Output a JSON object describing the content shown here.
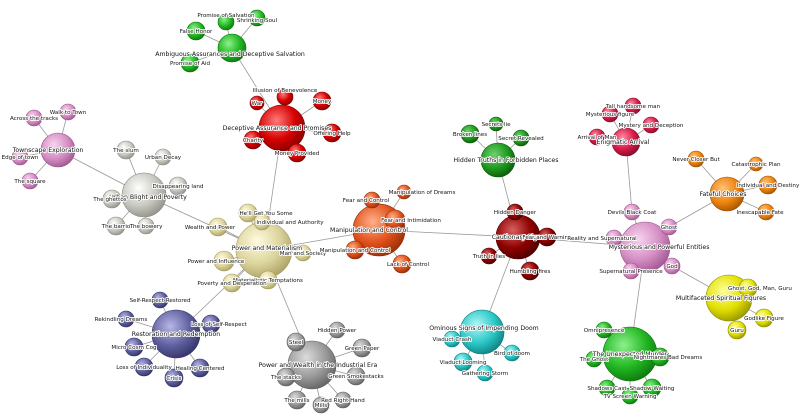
{
  "palette": {
    "green": {
      "light": "#8ef08e",
      "base": "#22b822",
      "dark": "#0a6e0a"
    },
    "red": {
      "light": "#ff7a7a",
      "base": "#d60000",
      "dark": "#7a0000"
    },
    "pink": {
      "light": "#f8d3ee",
      "base": "#d58fc4",
      "dark": "#9a4f8a"
    },
    "silver": {
      "light": "#ffffff",
      "base": "#c8c8c0",
      "dark": "#8a8a82"
    },
    "khaki": {
      "light": "#fffbe0",
      "base": "#dcd49c",
      "dark": "#a39a5c"
    },
    "orangered": {
      "light": "#ffb08a",
      "base": "#e0501a",
      "dark": "#8e2a06"
    },
    "darkred": {
      "light": "#d86060",
      "base": "#8e0000",
      "dark": "#420000"
    },
    "crimson": {
      "light": "#ff8aa0",
      "base": "#d81a48",
      "dark": "#7e0a26"
    },
    "darkgreen": {
      "light": "#6fd06f",
      "base": "#1e9a1e",
      "dark": "#085208"
    },
    "orange": {
      "light": "#ffc27a",
      "base": "#ef8410",
      "dark": "#9a4e00"
    },
    "slate": {
      "light": "#b6b6e6",
      "base": "#5f5f9f",
      "dark": "#2e2e62"
    },
    "gray": {
      "light": "#dcdcdc",
      "base": "#9a9a9a",
      "dark": "#5a5a5a"
    },
    "cyan": {
      "light": "#b2f6f6",
      "base": "#2cc8c8",
      "dark": "#0a7878"
    },
    "yellow": {
      "light": "#ffff9a",
      "base": "#e2e000",
      "dark": "#8e8c00"
    }
  },
  "nodes": [
    {
      "id": "ambiguous",
      "label": "Ambiguous Assurances and Deceptive Salvation",
      "color": "green",
      "hub": true
    },
    {
      "id": "promise",
      "label": "Promise of Salvation",
      "color": "green"
    },
    {
      "id": "shrinking",
      "label": "Shrinking Soul",
      "color": "green"
    },
    {
      "id": "falsehonor",
      "label": "False Honor",
      "color": "green"
    },
    {
      "id": "promiseaid",
      "label": "Promise of Aid",
      "color": "green"
    },
    {
      "id": "deceptive",
      "label": "Deceptive Assurance and Promises",
      "color": "red",
      "hub": true
    },
    {
      "id": "illusion",
      "label": "Illusion of Benevolence",
      "color": "red"
    },
    {
      "id": "war",
      "label": "War",
      "color": "red"
    },
    {
      "id": "money",
      "label": "Money",
      "color": "red"
    },
    {
      "id": "offeringhelp",
      "label": "Offering Help",
      "color": "red"
    },
    {
      "id": "charity",
      "label": "Charity",
      "color": "red"
    },
    {
      "id": "moneyprov",
      "label": "Money Provided",
      "color": "red"
    },
    {
      "id": "townscape",
      "label": "Townscape Exploration",
      "color": "pink",
      "hub": true
    },
    {
      "id": "walktown",
      "label": "Walk to Town",
      "color": "pink"
    },
    {
      "id": "acrosstracks",
      "label": "Across the tracks",
      "color": "pink"
    },
    {
      "id": "edgetown",
      "label": "Edge of town",
      "color": "pink"
    },
    {
      "id": "square",
      "label": "The square",
      "color": "pink"
    },
    {
      "id": "urbanblight",
      "label": "Urban Blight and Poverty",
      "color": "silver",
      "hub": true
    },
    {
      "id": "slum",
      "label": "The slum",
      "color": "silver"
    },
    {
      "id": "urbandecay",
      "label": "Urban Decay",
      "color": "silver"
    },
    {
      "id": "disappearing",
      "label": "Disappearing land",
      "color": "silver"
    },
    {
      "id": "ghettos",
      "label": "The ghettos",
      "color": "silver"
    },
    {
      "id": "barrio",
      "label": "The barrio",
      "color": "silver"
    },
    {
      "id": "bowery",
      "label": "The bowery",
      "color": "silver"
    },
    {
      "id": "powermat",
      "label": "Power and Materialism",
      "color": "khaki",
      "hub": true
    },
    {
      "id": "hellget",
      "label": "He'll Get You Some",
      "color": "khaki"
    },
    {
      "id": "individualauth",
      "label": "Individual and Authority",
      "color": "khaki"
    },
    {
      "id": "wealthpower",
      "label": "Wealth and Power",
      "color": "khaki"
    },
    {
      "id": "mansociety",
      "label": "Man and Society",
      "color": "khaki"
    },
    {
      "id": "powerinfl",
      "label": "Power and Influence",
      "color": "khaki"
    },
    {
      "id": "materialistic",
      "label": "Materialistic Temptations",
      "color": "khaki"
    },
    {
      "id": "povertydesp",
      "label": "Poverty and Desperation",
      "color": "khaki"
    },
    {
      "id": "manipulation",
      "label": "Manipulation and Control",
      "color": "orangered",
      "hub": true
    },
    {
      "id": "manipdreams",
      "label": "Manipulation of Dreams",
      "color": "orangered"
    },
    {
      "id": "fearcontrol",
      "label": "Fear and Control",
      "color": "orangered"
    },
    {
      "id": "fearintim",
      "label": "Fear and Intimidation",
      "color": "orangered"
    },
    {
      "id": "manipcontrol2",
      "label": "Manipulation and Control",
      "color": "orangered"
    },
    {
      "id": "lackcontrol",
      "label": "Lack of Control",
      "color": "orangered"
    },
    {
      "id": "cautionary",
      "label": "Cautionary Signs",
      "color": "darkred",
      "hub": true
    },
    {
      "id": "hiddendanger",
      "label": "Hidden Danger",
      "color": "darkred"
    },
    {
      "id": "fearwarning",
      "label": "Fear and Warning",
      "color": "darkred"
    },
    {
      "id": "truthlies",
      "label": "Truth in lies",
      "color": "darkred"
    },
    {
      "id": "humblingfires",
      "label": "Humbling fires",
      "color": "darkred"
    },
    {
      "id": "hiddentruths",
      "label": "Hidden Truths in Forbidden Places",
      "color": "darkgreen",
      "hub": true
    },
    {
      "id": "secretslie",
      "label": "Secrets lie",
      "color": "darkgreen"
    },
    {
      "id": "brokenlines",
      "label": "Broken lines",
      "color": "darkgreen"
    },
    {
      "id": "secretrev",
      "label": "Secret Revealed",
      "color": "darkgreen"
    },
    {
      "id": "enigmatic",
      "label": "Enigmatic Arrival",
      "color": "crimson",
      "hub": true
    },
    {
      "id": "tallhandsome",
      "label": "Tall handsome man",
      "color": "crimson"
    },
    {
      "id": "mysterious",
      "label": "Mysterious figure",
      "color": "crimson"
    },
    {
      "id": "mysterydec",
      "label": "Mystery and Deception",
      "color": "crimson"
    },
    {
      "id": "arrivalman",
      "label": "Arrival of Man",
      "color": "crimson"
    },
    {
      "id": "fateful",
      "label": "Fateful Choices",
      "color": "orange",
      "hub": true
    },
    {
      "id": "nevercloserbut",
      "label": "Never Closer But",
      "color": "orange"
    },
    {
      "id": "catastrophic",
      "label": "Catastrophic Plan",
      "color": "orange"
    },
    {
      "id": "individualdest",
      "label": "Individual and Destiny",
      "color": "orange"
    },
    {
      "id": "inescapable",
      "label": "Inescapable Fate",
      "color": "orange"
    },
    {
      "id": "mystpower",
      "label": "Mysterious and Powerful Entities",
      "color": "pink",
      "hub": true
    },
    {
      "id": "devilsblack",
      "label": "Devils Black Coat",
      "color": "pink"
    },
    {
      "id": "ghost",
      "label": "Ghost",
      "color": "pink"
    },
    {
      "id": "realitysuper",
      "label": "Reality and Supernatural",
      "color": "pink"
    },
    {
      "id": "superpresence",
      "label": "Supernatural Presence",
      "color": "pink"
    },
    {
      "id": "god",
      "label": "God",
      "color": "pink"
    },
    {
      "id": "multifaceted",
      "label": "Multifaceted Spiritual Figures",
      "color": "yellow",
      "hub": true
    },
    {
      "id": "ghostgod",
      "label": "Ghost, God, Man, Guru",
      "color": "yellow"
    },
    {
      "id": "godlike",
      "label": "Godlike Figure",
      "color": "yellow"
    },
    {
      "id": "guru",
      "label": "Guru",
      "color": "yellow"
    },
    {
      "id": "restoration",
      "label": "Restoration and Redemption",
      "color": "slate",
      "hub": true
    },
    {
      "id": "selfrestored",
      "label": "Self-Respect Restored",
      "color": "slate"
    },
    {
      "id": "rekindling",
      "label": "Rekindling Dreams",
      "color": "slate"
    },
    {
      "id": "lossselfresp",
      "label": "Loss of Self-Respect",
      "color": "slate"
    },
    {
      "id": "microcog",
      "label": "Micro Cosm Cog",
      "color": "slate"
    },
    {
      "id": "healingcentered",
      "label": "Healing Centered",
      "color": "slate"
    },
    {
      "id": "lossindiv",
      "label": "Loss of Individuality",
      "color": "slate"
    },
    {
      "id": "crisis",
      "label": "Crisis",
      "color": "slate"
    },
    {
      "id": "powerwealth",
      "label": "Power and Wealth in the Industrial Era",
      "color": "gray",
      "hub": true
    },
    {
      "id": "hiddenpower",
      "label": "Hidden Power",
      "color": "gray"
    },
    {
      "id": "steel",
      "label": "Steel",
      "color": "gray"
    },
    {
      "id": "greenpaper",
      "label": "Green Paper",
      "color": "gray"
    },
    {
      "id": "greensmoke",
      "label": "Green Smokestacks",
      "color": "gray"
    },
    {
      "id": "thestacks",
      "label": "The stacks",
      "color": "gray"
    },
    {
      "id": "themills",
      "label": "The mills",
      "color": "gray"
    },
    {
      "id": "redrighthand",
      "label": "Red Right Hand",
      "color": "gray"
    },
    {
      "id": "mills2",
      "label": "Mills",
      "color": "gray"
    },
    {
      "id": "ominous",
      "label": "Ominous Signs of Impending Doom",
      "color": "cyan",
      "hub": true
    },
    {
      "id": "viaductcrash",
      "label": "Viaduct Crash",
      "color": "cyan"
    },
    {
      "id": "birdofdoom",
      "label": "Bird of doom",
      "color": "cyan"
    },
    {
      "id": "viaductlooming",
      "label": "Viaduct Looming",
      "color": "cyan"
    },
    {
      "id": "gathering",
      "label": "Gathering Storm",
      "color": "cyan"
    },
    {
      "id": "unexpected",
      "label": "The Unexpected Murder",
      "color": "green",
      "hub": true
    },
    {
      "id": "omnipresence",
      "label": "Omnipresence",
      "color": "green"
    },
    {
      "id": "theghost2",
      "label": "The Ghost",
      "color": "green"
    },
    {
      "id": "nightmares",
      "label": "Nightmares Bad Dreams",
      "color": "green"
    },
    {
      "id": "shadowcast",
      "label": "Shadows Cast",
      "color": "green"
    },
    {
      "id": "shadowwaiting",
      "label": "Shadow Waiting",
      "color": "green"
    },
    {
      "id": "tvscreen",
      "label": "TV Screen Warning",
      "color": "green"
    }
  ],
  "edges": [
    [
      "ambiguous",
      "promise"
    ],
    [
      "ambiguous",
      "shrinking"
    ],
    [
      "ambiguous",
      "falsehonor"
    ],
    [
      "ambiguous",
      "promiseaid"
    ],
    [
      "ambiguous",
      "deceptive"
    ],
    [
      "deceptive",
      "illusion"
    ],
    [
      "deceptive",
      "war"
    ],
    [
      "deceptive",
      "money"
    ],
    [
      "deceptive",
      "offeringhelp"
    ],
    [
      "deceptive",
      "charity"
    ],
    [
      "deceptive",
      "moneyprov"
    ],
    [
      "deceptive",
      "powermat"
    ],
    [
      "townscape",
      "walktown"
    ],
    [
      "townscape",
      "acrosstracks"
    ],
    [
      "townscape",
      "edgetown"
    ],
    [
      "townscape",
      "square"
    ],
    [
      "townscape",
      "urbanblight"
    ],
    [
      "urbanblight",
      "slum"
    ],
    [
      "urbanblight",
      "urbandecay"
    ],
    [
      "urbanblight",
      "disappearing"
    ],
    [
      "urbanblight",
      "ghettos"
    ],
    [
      "urbanblight",
      "barrio"
    ],
    [
      "urbanblight",
      "bowery"
    ],
    [
      "urbanblight",
      "powermat"
    ],
    [
      "powermat",
      "hellget"
    ],
    [
      "powermat",
      "individualauth"
    ],
    [
      "powermat",
      "wealthpower"
    ],
    [
      "powermat",
      "mansociety"
    ],
    [
      "powermat",
      "powerinfl"
    ],
    [
      "powermat",
      "materialistic"
    ],
    [
      "powermat",
      "povertydesp"
    ],
    [
      "powermat",
      "manipulation"
    ],
    [
      "powermat",
      "restoration"
    ],
    [
      "powermat",
      "powerwealth"
    ],
    [
      "manipulation",
      "manipdreams"
    ],
    [
      "manipulation",
      "fearcontrol"
    ],
    [
      "manipulation",
      "fearintim"
    ],
    [
      "manipulation",
      "manipcontrol2"
    ],
    [
      "manipulation",
      "lackcontrol"
    ],
    [
      "manipulation",
      "cautionary"
    ],
    [
      "cautionary",
      "hiddendanger"
    ],
    [
      "cautionary",
      "fearwarning"
    ],
    [
      "cautionary",
      "truthlies"
    ],
    [
      "cautionary",
      "humblingfires"
    ],
    [
      "cautionary",
      "hiddentruths"
    ],
    [
      "cautionary",
      "ominous"
    ],
    [
      "cautionary",
      "mystpower"
    ],
    [
      "hiddentruths",
      "secretslie"
    ],
    [
      "hiddentruths",
      "brokenlines"
    ],
    [
      "hiddentruths",
      "secretrev"
    ],
    [
      "enigmatic",
      "tallhandsome"
    ],
    [
      "enigmatic",
      "mysterious"
    ],
    [
      "enigmatic",
      "mysterydec"
    ],
    [
      "enigmatic",
      "arrivalman"
    ],
    [
      "enigmatic",
      "devilsblack"
    ],
    [
      "fateful",
      "nevercloserbut"
    ],
    [
      "fateful",
      "catastrophic"
    ],
    [
      "fateful",
      "individualdest"
    ],
    [
      "fateful",
      "inescapable"
    ],
    [
      "fateful",
      "ghost"
    ],
    [
      "mystpower",
      "devilsblack"
    ],
    [
      "mystpower",
      "ghost"
    ],
    [
      "mystpower",
      "realitysuper"
    ],
    [
      "mystpower",
      "superpresence"
    ],
    [
      "mystpower",
      "god"
    ],
    [
      "mystpower",
      "unexpected"
    ],
    [
      "god",
      "multifaceted"
    ],
    [
      "multifaceted",
      "ghostgod"
    ],
    [
      "multifaceted",
      "godlike"
    ],
    [
      "multifaceted",
      "guru"
    ],
    [
      "restoration",
      "selfrestored"
    ],
    [
      "restoration",
      "rekindling"
    ],
    [
      "restoration",
      "lossselfresp"
    ],
    [
      "restoration",
      "microcog"
    ],
    [
      "restoration",
      "healingcentered"
    ],
    [
      "restoration",
      "lossindiv"
    ],
    [
      "restoration",
      "crisis"
    ],
    [
      "powerwealth",
      "hiddenpower"
    ],
    [
      "powerwealth",
      "steel"
    ],
    [
      "powerwealth",
      "greenpaper"
    ],
    [
      "powerwealth",
      "greensmoke"
    ],
    [
      "powerwealth",
      "thestacks"
    ],
    [
      "powerwealth",
      "themills"
    ],
    [
      "powerwealth",
      "redrighthand"
    ],
    [
      "powerwealth",
      "mills2"
    ],
    [
      "ominous",
      "viaductcrash"
    ],
    [
      "ominous",
      "birdofdoom"
    ],
    [
      "ominous",
      "viaductlooming"
    ],
    [
      "ominous",
      "gathering"
    ],
    [
      "unexpected",
      "omnipresence"
    ],
    [
      "unexpected",
      "theghost2"
    ],
    [
      "unexpected",
      "nightmares"
    ],
    [
      "unexpected",
      "shadowcast"
    ],
    [
      "unexpected",
      "shadowwaiting"
    ],
    [
      "unexpected",
      "tvscreen"
    ]
  ]
}
